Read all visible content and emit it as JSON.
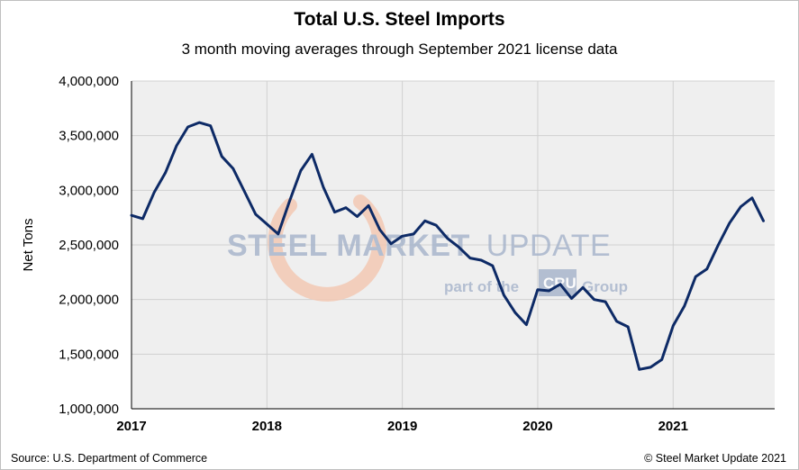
{
  "header": {
    "title": "Total U.S. Steel Imports",
    "subtitle": "3 month moving averages through September 2021 license data"
  },
  "footer": {
    "source": "Source: U.S. Department of Commerce",
    "copyright": "© Steel Market Update 2021"
  },
  "watermark": {
    "line1_bold": "STEEL MARKET",
    "line1_light": "UPDATE",
    "line2_left": "part of the",
    "logo_text": "CRU",
    "line2_right": "Group"
  },
  "colors": {
    "line": "#0d2a66",
    "plot_bg": "#efefef",
    "grid": "#d0d0d0",
    "watermark_blue": "#a9b6cc",
    "watermark_orange": "#f3c9b4"
  },
  "chart_data": {
    "type": "line",
    "title": "Total U.S. Steel Imports",
    "subtitle": "3 month moving averages through September 2021 license data",
    "xlabel": "",
    "ylabel": "Net Tons",
    "ylim": [
      1000000,
      4000000
    ],
    "yticks": [
      1000000,
      1500000,
      2000000,
      2500000,
      3000000,
      3500000,
      4000000
    ],
    "ytick_labels": [
      "1,000,000",
      "1,500,000",
      "2,000,000",
      "2,500,000",
      "3,000,000",
      "3,500,000",
      "4,000,000"
    ],
    "xticks": [
      "2017",
      "2018",
      "2019",
      "2020",
      "2021"
    ],
    "grid": true,
    "legend": "none",
    "series": [
      {
        "x": [
          "2017-01",
          "2017-02",
          "2017-03",
          "2017-04",
          "2017-05",
          "2017-06",
          "2017-07",
          "2017-08",
          "2017-09",
          "2017-10",
          "2017-11",
          "2017-12",
          "2018-01",
          "2018-02",
          "2018-03",
          "2018-04",
          "2018-05",
          "2018-06",
          "2018-07",
          "2018-08",
          "2018-09",
          "2018-10",
          "2018-11",
          "2018-12",
          "2019-01",
          "2019-02",
          "2019-03",
          "2019-04",
          "2019-05",
          "2019-06",
          "2019-07",
          "2019-08",
          "2019-09",
          "2019-10",
          "2019-11",
          "2019-12",
          "2020-01",
          "2020-02",
          "2020-03",
          "2020-04",
          "2020-05",
          "2020-06",
          "2020-07",
          "2020-08",
          "2020-09",
          "2020-10",
          "2020-11",
          "2020-12",
          "2021-01",
          "2021-02",
          "2021-03",
          "2021-04",
          "2021-05",
          "2021-06",
          "2021-07",
          "2021-08",
          "2021-09"
        ],
        "values": [
          2770000,
          2740000,
          2980000,
          3160000,
          3410000,
          3580000,
          3620000,
          3590000,
          3310000,
          3200000,
          2990000,
          2780000,
          2690000,
          2600000,
          2900000,
          3180000,
          3330000,
          3030000,
          2800000,
          2840000,
          2760000,
          2860000,
          2640000,
          2510000,
          2580000,
          2600000,
          2720000,
          2680000,
          2560000,
          2480000,
          2380000,
          2360000,
          2310000,
          2040000,
          1880000,
          1770000,
          2090000,
          2080000,
          2140000,
          2010000,
          2110000,
          2000000,
          1980000,
          1800000,
          1750000,
          1360000,
          1380000,
          1450000,
          1760000,
          1940000,
          2210000,
          2280000,
          2500000,
          2700000,
          2850000,
          2930000,
          2720000
        ]
      }
    ]
  }
}
